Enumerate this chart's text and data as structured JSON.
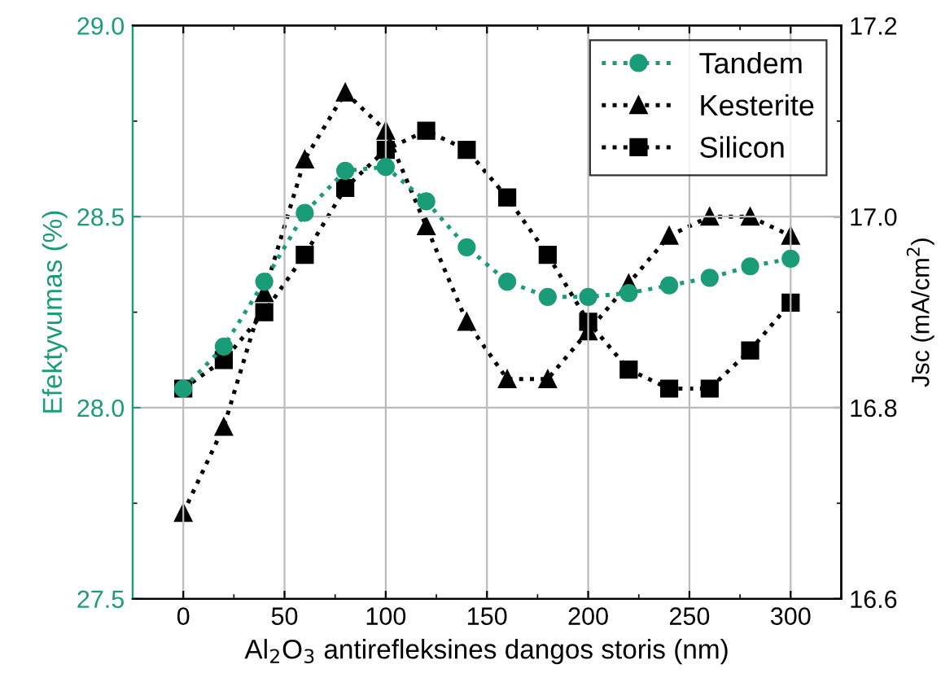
{
  "chart_data": {
    "type": "line",
    "xlabel": "Al$_{2}$O$_{3}$ antirefleksines dangos storis (nm)",
    "ylabel": "Efektyvumas (%)",
    "y2label": "Jsc (mA/cm$^{2}$)",
    "x": [
      0,
      20,
      40,
      60,
      80,
      100,
      120,
      140,
      160,
      180,
      200,
      220,
      240,
      260,
      280,
      300
    ],
    "xlim": [
      -25,
      325
    ],
    "xticks": [
      0,
      50,
      100,
      150,
      200,
      250,
      300
    ],
    "ylim": [
      27.5,
      29.0
    ],
    "yticks": [
      {
        "value": 27.5,
        "label": "27.5"
      },
      {
        "value": 28.0,
        "label": "28.0"
      },
      {
        "value": 28.5,
        "label": "28.5"
      },
      {
        "value": 29.0,
        "label": "29.0"
      }
    ],
    "y2lim": [
      16.6,
      17.2
    ],
    "y2ticks": [
      {
        "value": 16.6,
        "label": "16.6"
      },
      {
        "value": 16.8,
        "label": "16.8"
      },
      {
        "value": 17.0,
        "label": "17.0"
      },
      {
        "value": 17.2,
        "label": "17.2"
      }
    ],
    "grid": true,
    "legend": "top right",
    "line_style": "dotted",
    "series": [
      {
        "name": "Tandem",
        "color": "#1b9c78",
        "marker": "circle",
        "values": [
          28.05,
          28.16,
          28.33,
          28.51,
          28.62,
          28.63,
          28.54,
          28.42,
          28.33,
          28.29,
          28.29,
          28.3,
          28.32,
          28.34,
          28.37,
          28.39
        ]
      },
      {
        "name": "Kesterite",
        "color": "#000000",
        "marker": "triangle",
        "axis": "y2",
        "values": [
          16.69,
          16.78,
          16.92,
          17.06,
          17.13,
          17.09,
          16.99,
          16.89,
          16.83,
          16.83,
          16.88,
          16.93,
          16.98,
          17.0,
          17.0,
          16.98
        ]
      },
      {
        "name": "Silicon",
        "color": "#000000",
        "marker": "square",
        "axis": "y2",
        "values": [
          16.82,
          16.85,
          16.9,
          16.96,
          17.03,
          17.07,
          17.09,
          17.07,
          17.02,
          16.96,
          16.89,
          16.84,
          16.82,
          16.82,
          16.86,
          16.91
        ]
      }
    ]
  }
}
